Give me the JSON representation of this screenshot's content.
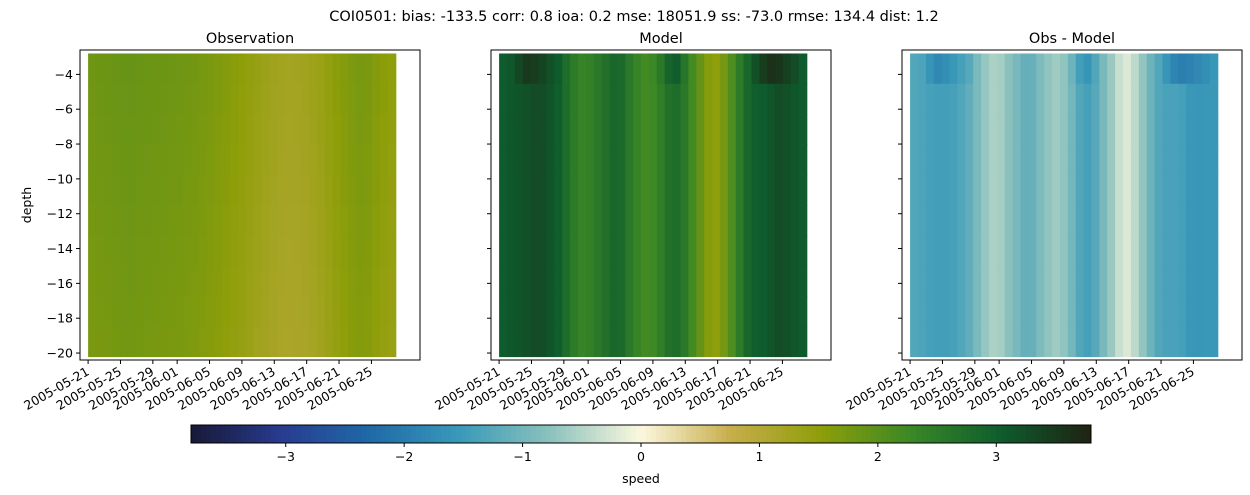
{
  "suptitle": "COI0501: bias: -133.5  corr: 0.8  ioa: 0.2  mse: 18051.9  ss: -73.0  rmse: 134.4  dist: 1.2",
  "colors": {
    "cmap_stops": [
      "#171936",
      "#283b8f",
      "#1f6aa8",
      "#3a9ab9",
      "#8cc2bd",
      "#fcf8df",
      "#c7ad4a",
      "#8e9e09",
      "#3a8826",
      "#0e5c2d",
      "#1f2212"
    ]
  },
  "chart_data": [
    {
      "type": "heatmap",
      "title": "Observation",
      "xlabel": "",
      "ylabel": "depth",
      "ylim": [
        -20.4,
        -2.6
      ],
      "xlim": [
        "2005-05-20",
        "2005-07-01"
      ],
      "x_range": [
        "2005-05-21",
        "2005-06-28"
      ],
      "y_range": [
        -20.2,
        -2.8
      ],
      "yticks": [
        -4,
        -6,
        -8,
        -10,
        -12,
        -14,
        -16,
        -18,
        -20
      ],
      "xticks": [
        "2005-05-21",
        "2005-05-25",
        "2005-05-29",
        "2005-06-01",
        "2005-06-05",
        "2005-06-09",
        "2005-06-13",
        "2005-06-17",
        "2005-06-21",
        "2005-06-25"
      ],
      "values_by_time": [
        1.8,
        1.82,
        1.83,
        1.85,
        1.86,
        1.87,
        1.85,
        1.84,
        1.83,
        1.82,
        1.81,
        1.8,
        1.78,
        1.76,
        1.73,
        1.7,
        1.66,
        1.62,
        1.57,
        1.52,
        1.46,
        1.4,
        1.35,
        1.3,
        1.26,
        1.24,
        1.25,
        1.28,
        1.32,
        1.38,
        1.46,
        1.55,
        1.62,
        1.68,
        1.72,
        1.7,
        1.62,
        1.55,
        1.5
      ],
      "depth_effect": "slightly lower speed with depth"
    },
    {
      "type": "heatmap",
      "title": "Model",
      "xlabel": "",
      "ylabel": "",
      "ylim": [
        -20.4,
        -2.6
      ],
      "xlim": [
        "2005-05-20",
        "2005-07-01"
      ],
      "x_range": [
        "2005-05-21",
        "2005-06-28"
      ],
      "y_range": [
        -20.2,
        -2.8
      ],
      "yticks": [
        -4,
        -6,
        -8,
        -10,
        -12,
        -14,
        -16,
        -18,
        -20
      ],
      "xticks": [
        "2005-05-21",
        "2005-05-25",
        "2005-05-29",
        "2005-06-01",
        "2005-06-05",
        "2005-06-09",
        "2005-06-13",
        "2005-06-17",
        "2005-06-21",
        "2005-06-25"
      ],
      "values_by_time": [
        3.05,
        3.1,
        3.15,
        3.2,
        3.25,
        3.25,
        3.15,
        3.0,
        2.75,
        2.5,
        2.35,
        2.4,
        2.55,
        2.7,
        2.85,
        2.8,
        2.55,
        2.35,
        2.2,
        2.25,
        2.45,
        2.7,
        2.75,
        2.55,
        2.2,
        1.9,
        1.6,
        1.5,
        1.75,
        2.1,
        2.5,
        2.85,
        3.0,
        3.05,
        3.15,
        3.25,
        3.2,
        3.1,
        3.05
      ],
      "surface_values_by_time": [
        3.05,
        3.1,
        3.3,
        3.5,
        3.45,
        3.35,
        3.2,
        3.05,
        2.75,
        2.5,
        2.35,
        2.4,
        2.55,
        2.7,
        2.85,
        2.8,
        2.55,
        2.35,
        2.2,
        2.3,
        2.55,
        2.9,
        3.0,
        2.6,
        2.2,
        1.9,
        1.6,
        1.5,
        1.75,
        2.1,
        2.5,
        2.85,
        3.2,
        3.45,
        3.6,
        3.55,
        3.4,
        3.25,
        3.05
      ],
      "surface_depth_cutoff": -4.2
    },
    {
      "type": "heatmap",
      "title": "Obs - Model",
      "xlabel": "",
      "ylabel": "",
      "ylim": [
        -20.4,
        -2.6
      ],
      "xlim": [
        "2005-05-20",
        "2005-07-01"
      ],
      "x_range": [
        "2005-05-21",
        "2005-06-28"
      ],
      "y_range": [
        -20.2,
        -2.8
      ],
      "yticks": [
        -4,
        -6,
        -8,
        -10,
        -12,
        -14,
        -16,
        -18,
        -20
      ],
      "xticks": [
        "2005-05-21",
        "2005-05-25",
        "2005-05-29",
        "2005-06-01",
        "2005-06-05",
        "2005-06-09",
        "2005-06-13",
        "2005-06-17",
        "2005-06-21",
        "2005-06-25"
      ],
      "values_by_time": [
        -1.3,
        -1.35,
        -1.4,
        -1.45,
        -1.45,
        -1.4,
        -1.3,
        -1.15,
        -0.92,
        -0.7,
        -0.55,
        -0.6,
        -0.77,
        -0.94,
        -1.12,
        -1.1,
        -0.89,
        -0.73,
        -0.63,
        -0.73,
        -0.99,
        -1.3,
        -1.4,
        -1.25,
        -0.94,
        -0.66,
        -0.35,
        -0.22,
        -0.43,
        -0.72,
        -1.04,
        -1.3,
        -1.38,
        -1.37,
        -1.43,
        -1.55,
        -1.58,
        -1.55,
        -1.55
      ],
      "surface_values_by_time": [
        -1.3,
        -1.35,
        -1.6,
        -1.8,
        -1.7,
        -1.55,
        -1.4,
        -1.25,
        -0.92,
        -0.7,
        -0.55,
        -0.6,
        -0.77,
        -0.94,
        -1.12,
        -1.1,
        -0.89,
        -0.73,
        -0.63,
        -0.73,
        -1.05,
        -1.45,
        -1.6,
        -1.3,
        -0.94,
        -0.66,
        -0.35,
        -0.22,
        -0.43,
        -0.72,
        -1.04,
        -1.3,
        -1.6,
        -1.85,
        -1.95,
        -1.9,
        -1.8,
        -1.7,
        -1.55
      ],
      "surface_depth_cutoff": -4.2
    }
  ],
  "colorbar": {
    "label": "speed",
    "range": [
      -3.8,
      3.8
    ],
    "ticks": [
      -3,
      -2,
      -1,
      0,
      1,
      2,
      3
    ],
    "tick_labels": [
      "−3",
      "−2",
      "−1",
      "0",
      "1",
      "2",
      "3"
    ]
  }
}
